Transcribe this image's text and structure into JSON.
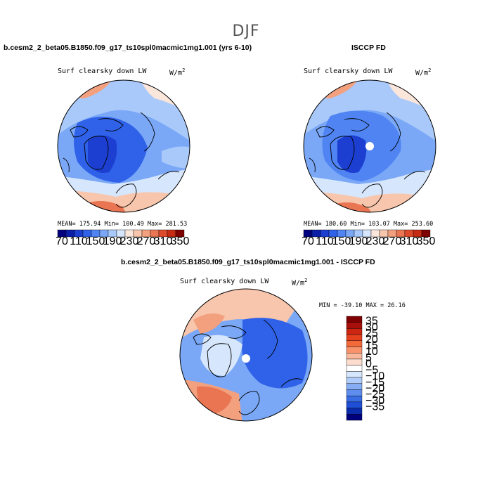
{
  "title": "DJF",
  "panels": {
    "model": {
      "case": "b.cesm2_2_beta05.B1850.f09_g17_ts10spl0macmic1mg1.001 (yrs 6-10)",
      "variable": "Surf clearsky down LW",
      "units_base": "W/m",
      "units_exp": "2",
      "stats": "MEAN= 175.94   Min= 100.49   Max= 281.53"
    },
    "obs": {
      "case": "ISCCP FD",
      "variable": "Surf clearsky down LW",
      "units_base": "W/m",
      "units_exp": "2",
      "stats": "MEAN= 180.60   Min= 103.07   Max= 253.60"
    },
    "diff": {
      "case": "b.cesm2_2_beta05.B1850.f09_g17_ts10spl0macmic1mg1.001 - ISCCP FD",
      "variable": "Surf clearsky down LW",
      "units_base": "W/m",
      "units_exp": "2",
      "stats": "MIN = -39.10 MAX =  26.16"
    }
  },
  "abs_colorbar": {
    "colors": [
      "#00007f",
      "#0a1ea8",
      "#1c3fd1",
      "#2f62e8",
      "#4f84f2",
      "#7aa8f7",
      "#a9c9fa",
      "#d6e6fc",
      "#fbe6dc",
      "#f8c6ad",
      "#f3a07f",
      "#ea7553",
      "#de4a2c",
      "#c62b14",
      "#7f0000"
    ],
    "labels": [
      "70",
      "110",
      "150",
      "190",
      "230",
      "270",
      "310",
      "350"
    ]
  },
  "diff_colorbar": {
    "colors": [
      "#7f0000",
      "#a80f0a",
      "#cc2612",
      "#e6411e",
      "#f26a3a",
      "#f7926a",
      "#f9b89c",
      "#fbdccd",
      "#ffffff",
      "#d6e6fc",
      "#aecbfa",
      "#86adf4",
      "#5e8ded",
      "#3a6de3",
      "#1f4fd6",
      "#0a2cab",
      "#00007f"
    ],
    "labels": [
      "35",
      "30",
      "25",
      "20",
      "15",
      "10",
      "5",
      "0",
      "−5",
      "−10",
      "−15",
      "−20",
      "−25",
      "−30",
      "−35"
    ]
  }
}
